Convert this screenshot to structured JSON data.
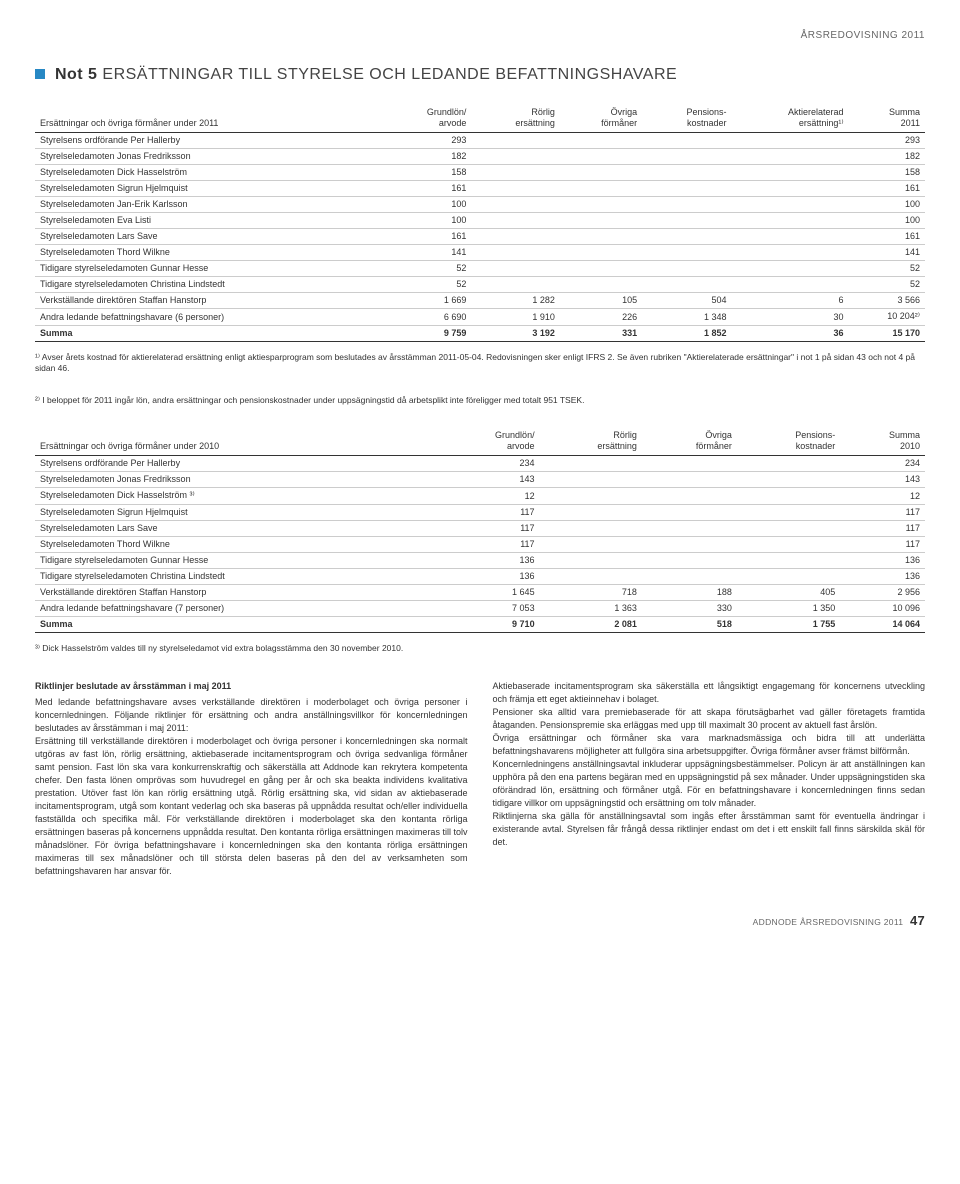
{
  "header_right": "ÅRSREDOVISNING 2011",
  "note_label": "Not 5",
  "note_title": "ERSÄTTNINGAR TILL STYRELSE OCH LEDANDE BEFATTNINGSHAVARE",
  "table1": {
    "columns": [
      "Ersättningar och övriga förmåner under 2011",
      "Grundlön/\narvode",
      "Rörlig\nersättning",
      "Övriga\nförmåner",
      "Pensions-\nkostnader",
      "Aktierelaterad\nersättning¹⁾",
      "Summa\n2011"
    ],
    "rows": [
      [
        "Styrelsens ordförande Per Hallerby",
        "293",
        "",
        "",
        "",
        "",
        "293"
      ],
      [
        "Styrelseledamoten Jonas Fredriksson",
        "182",
        "",
        "",
        "",
        "",
        "182"
      ],
      [
        "Styrelseledamoten Dick Hasselström",
        "158",
        "",
        "",
        "",
        "",
        "158"
      ],
      [
        "Styrelseledamoten Sigrun Hjelmquist",
        "161",
        "",
        "",
        "",
        "",
        "161"
      ],
      [
        "Styrelseledamoten Jan-Erik Karlsson",
        "100",
        "",
        "",
        "",
        "",
        "100"
      ],
      [
        "Styrelseledamoten Eva Listi",
        "100",
        "",
        "",
        "",
        "",
        "100"
      ],
      [
        "Styrelseledamoten Lars Save",
        "161",
        "",
        "",
        "",
        "",
        "161"
      ],
      [
        "Styrelseledamoten Thord Wilkne",
        "141",
        "",
        "",
        "",
        "",
        "141"
      ],
      [
        "Tidigare styrelseledamoten Gunnar Hesse",
        "52",
        "",
        "",
        "",
        "",
        "52"
      ],
      [
        "Tidigare styrelseledamoten Christina Lindstedt",
        "52",
        "",
        "",
        "",
        "",
        "52"
      ],
      [
        "Verkställande direktören Staffan Hanstorp",
        "1 669",
        "1 282",
        "105",
        "504",
        "6",
        "3 566"
      ],
      [
        "Andra ledande befattningshavare (6 personer)",
        "6 690",
        "1 910",
        "226",
        "1 348",
        "30",
        "10 204²⁾"
      ]
    ],
    "sum": [
      "Summa",
      "9 759",
      "3 192",
      "331",
      "1 852",
      "36",
      "15 170"
    ]
  },
  "footnote1": "¹⁾ Avser årets kostnad för aktierelaterad ersättning enligt aktiesparprogram som beslutades av årsstämman 2011-05-04. Redovisningen sker enligt IFRS 2. Se även rubriken \"Aktierelaterade ersättningar\" i not 1 på sidan 43 och not 4 på sidan 46.",
  "footnote2": "²⁾ I beloppet för 2011 ingår lön, andra ersättningar och pensionskostnader under uppsägningstid då arbetsplikt inte föreligger med totalt 951 TSEK.",
  "table2": {
    "columns": [
      "Ersättningar och övriga förmåner under 2010",
      "Grundlön/\narvode",
      "Rörlig\nersättning",
      "Övriga\nförmåner",
      "Pensions-\nkostnader",
      "Summa\n2010"
    ],
    "rows": [
      [
        "Styrelsens ordförande Per Hallerby",
        "234",
        "",
        "",
        "",
        "234"
      ],
      [
        "Styrelseledamoten Jonas Fredriksson",
        "143",
        "",
        "",
        "",
        "143"
      ],
      [
        "Styrelseledamoten Dick Hasselström ³⁾",
        "12",
        "",
        "",
        "",
        "12"
      ],
      [
        "Styrelseledamoten Sigrun Hjelmquist",
        "117",
        "",
        "",
        "",
        "117"
      ],
      [
        "Styrelseledamoten Lars Save",
        "117",
        "",
        "",
        "",
        "117"
      ],
      [
        "Styrelseledamoten Thord Wilkne",
        "117",
        "",
        "",
        "",
        "117"
      ],
      [
        "Tidigare styrelseledamoten Gunnar Hesse",
        "136",
        "",
        "",
        "",
        "136"
      ],
      [
        "Tidigare styrelseledamoten Christina Lindstedt",
        "136",
        "",
        "",
        "",
        "136"
      ],
      [
        "Verkställande direktören Staffan Hanstorp",
        "1 645",
        "718",
        "188",
        "405",
        "2 956"
      ],
      [
        "Andra ledande befattningshavare (7 personer)",
        "7 053",
        "1 363",
        "330",
        "1 350",
        "10 096"
      ]
    ],
    "sum": [
      "Summa",
      "9 710",
      "2 081",
      "518",
      "1 755",
      "14 064"
    ]
  },
  "footnote3": "³⁾ Dick Hasselström valdes till ny styrelseledamot vid extra bolagsstämma den 30 november 2010.",
  "body": {
    "subhead": "Riktlinjer beslutade av årsstämman i maj 2011",
    "left": "Med ledande befattningshavare avses verkställande direktören i moderbolaget och övriga personer i koncernledningen. Följande riktlinjer för ersättning och andra anställningsvillkor för koncernledningen beslutades av årsstämman i maj 2011:\n    Ersättning till verkställande direktören i moderbolaget och övriga personer i koncernledningen ska normalt utgöras av fast lön, rörlig ersättning, aktiebaserade incitamentsprogram och övriga sedvanliga förmåner samt pension. Fast lön ska vara konkurrenskraftig och säkerställa att Addnode kan rekrytera kompetenta chefer. Den fasta lönen omprövas som huvudregel en gång per år och ska beakta individens kvalitativa prestation. Utöver fast lön kan rörlig ersättning utgå. Rörlig ersättning ska, vid sidan av aktiebaserade incitamentsprogram, utgå som kontant vederlag och ska baseras på uppnådda resultat och/eller individuella fastställda och specifika mål. För verkställande direktören i moderbolaget ska den kontanta rörliga ersättningen baseras på koncernens uppnådda resultat. Den kontanta rörliga ersättningen maximeras till tolv månadslöner. För övriga befattningshavare i koncernledningen ska den kontanta rörliga ersättningen maximeras till sex månadslöner och till största delen baseras på den del av verksamheten som befattningshavaren har ansvar för.",
    "right": "    Aktiebaserade incitamentsprogram ska säkerställa ett långsiktigt engagemang för koncernens utveckling och främja ett eget aktieinnehav i bolaget.\n    Pensioner ska alltid vara premiebaserade för att skapa förutsägbarhet vad gäller företagets framtida åtaganden. Pensionspremie ska erläggas med upp till maximalt 30 procent av aktuell fast årslön.\n    Övriga ersättningar och förmåner ska vara marknadsmässiga och bidra till att underlätta befattningshavarens möjligheter att fullgöra sina arbetsuppgifter. Övriga förmåner avser främst bilförmån.\n    Koncernledningens anställningsavtal inkluderar uppsägningsbestämmelser. Policyn är att anställningen kan upphöra på den ena partens begäran med en uppsägningstid på sex månader. Under uppsägningstiden ska oförändrad lön, ersättning och förmåner utgå. För en befattningshavare i koncernledningen finns sedan tidigare villkor om uppsägningstid och ersättning om tolv månader.\n    Riktlinjerna ska gälla för anställningsavtal som ingås efter årsstämman samt för eventuella ändringar i existerande avtal. Styrelsen får frångå dessa riktlinjer endast om det i ett enskilt fall finns särskilda skäl för det."
  },
  "page_footer_label": "ADDNODE ÅRSREDOVISNING 2011",
  "page_number": "47"
}
